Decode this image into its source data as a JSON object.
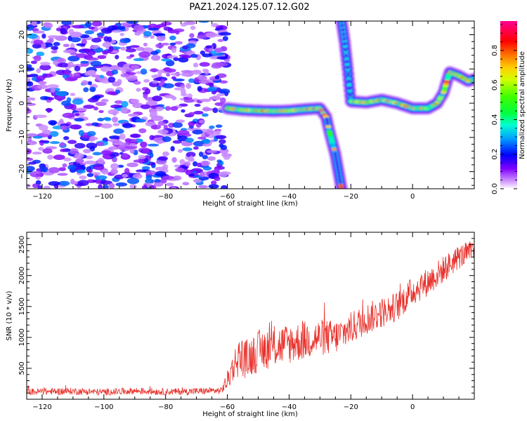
{
  "figure": {
    "title": "PAZ1.2024.125.07.12.G02"
  },
  "chart_data": [
    {
      "type": "heatmap",
      "title": "",
      "xlabel": "Height of straight line (km)",
      "ylabel": "Frequency (Hz)",
      "xlim": [
        -125,
        20
      ],
      "ylim": [
        -25,
        24
      ],
      "xticks": [
        -120,
        -100,
        -80,
        -60,
        -40,
        -20,
        0
      ],
      "yticks": [
        -20,
        -10,
        0,
        10,
        20
      ],
      "colorbar": {
        "label": "Normalized spectral amplitude",
        "range": [
          0.0,
          0.97
        ],
        "ticks": [
          0.0,
          0.2,
          0.4,
          0.6,
          0.8
        ],
        "colormap": "gist_rainbow"
      },
      "features": [
        {
          "name": "noise",
          "x_range": [
            -125,
            -60
          ],
          "y_range": [
            -25,
            24
          ],
          "amplitude": [
            0.05,
            0.3
          ]
        },
        {
          "name": "carrier-1",
          "x": [
            -60,
            -55,
            -50,
            -45,
            -40,
            -35,
            -30,
            -28,
            -27,
            -25,
            -24,
            -23
          ],
          "y": [
            -1.5,
            -2,
            -2.2,
            -2.3,
            -2.2,
            -1.8,
            -1.5,
            -4,
            -8,
            -15,
            -20,
            -25
          ],
          "peak_amplitude": 0.93
        },
        {
          "name": "carrier-2",
          "x": [
            -23,
            -22,
            -21,
            -20,
            -15,
            -10,
            -5,
            0,
            5,
            8,
            10,
            12,
            15,
            18,
            20
          ],
          "y": [
            24,
            18,
            10,
            0.5,
            0.2,
            1,
            0,
            -1.5,
            -1.5,
            0,
            3,
            9,
            8,
            6.5,
            7
          ],
          "peak_amplitude": 0.95
        }
      ],
      "grid": false,
      "legend": "none"
    },
    {
      "type": "line",
      "title": "",
      "xlabel": "Height of straight line (km)",
      "ylabel": "SNR (10 * v/v)",
      "xlim": [
        -125,
        20
      ],
      "ylim": [
        0,
        2700
      ],
      "xticks": [
        -120,
        -100,
        -80,
        -60,
        -40,
        -20,
        0
      ],
      "yticks": [
        500,
        1000,
        1500,
        2000,
        2500
      ],
      "series": [
        {
          "color": "#e8302a",
          "x": [
            -125,
            -110,
            -100,
            -90,
            -80,
            -70,
            -62,
            -60,
            -58,
            -56,
            -54,
            -50,
            -45,
            -40,
            -35,
            -30,
            -25,
            -20,
            -15,
            -10,
            -5,
            0,
            5,
            10,
            15,
            20
          ],
          "y": [
            120,
            130,
            115,
            135,
            120,
            130,
            140,
            300,
            550,
            700,
            650,
            780,
            850,
            900,
            950,
            1000,
            1000,
            1150,
            1300,
            1400,
            1500,
            1750,
            1900,
            2100,
            2300,
            2400
          ],
          "noise_amplitude": [
            55,
            55,
            55,
            55,
            55,
            55,
            55,
            160,
            250,
            320,
            320,
            340,
            340,
            330,
            320,
            300,
            280,
            260,
            260,
            250,
            240,
            240,
            230,
            220,
            200,
            180
          ]
        }
      ],
      "grid": false,
      "legend": "none"
    }
  ]
}
